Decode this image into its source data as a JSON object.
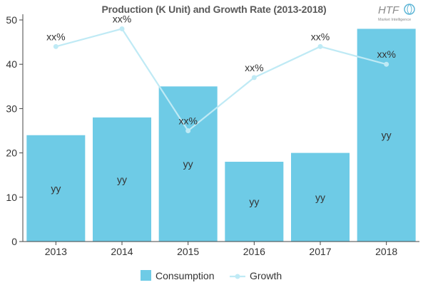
{
  "colors": {
    "bar": "#6ecbe6",
    "line": "#bfeaf5",
    "axis": "#444444",
    "grid": "#d9d9d9"
  },
  "logo": {
    "text": "HTF",
    "subtext": "Market Intelligence"
  },
  "chart_data": {
    "type": "bar",
    "title": "Production (K Unit) and Growth Rate (2013-2018)",
    "categories": [
      "2013",
      "2014",
      "2015",
      "2016",
      "2017",
      "2018"
    ],
    "ylim": [
      0,
      50
    ],
    "yticks": [
      0,
      10,
      20,
      30,
      40,
      50
    ],
    "grid": false,
    "legend_position": "bottom",
    "series": [
      {
        "name": "Consumption",
        "kind": "bar",
        "values": [
          24,
          28,
          35,
          18,
          20,
          48
        ],
        "labels": [
          "yy",
          "yy",
          "yy",
          "yy",
          "yy",
          "yy"
        ]
      },
      {
        "name": "Growth",
        "kind": "line",
        "values": [
          44,
          48,
          25,
          37,
          44,
          40
        ],
        "labels": [
          "xx%",
          "xx%",
          "xx%",
          "xx%",
          "xx%",
          "xx%"
        ]
      }
    ]
  }
}
